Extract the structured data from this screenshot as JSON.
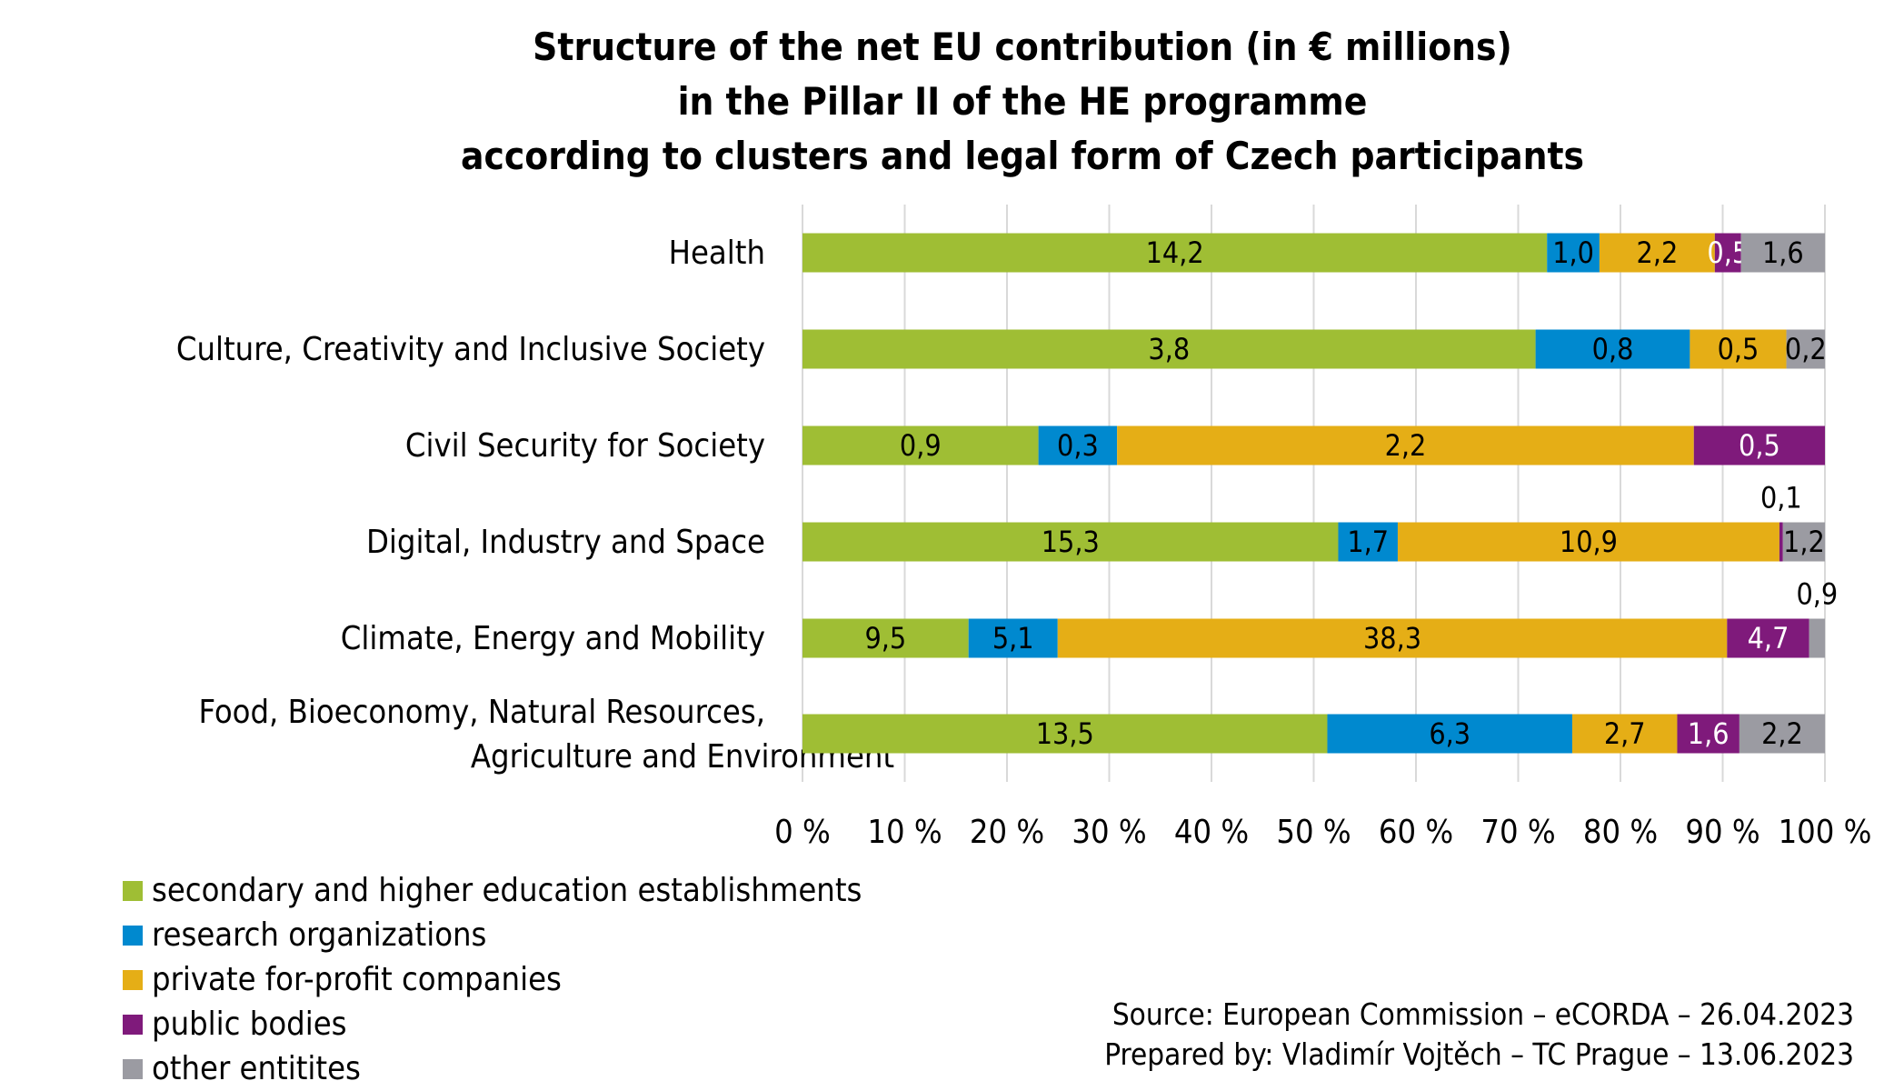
{
  "chart_data": {
    "type": "bar",
    "orientation": "horizontal",
    "stacked": "percent",
    "title": [
      "Structure of the net EU contribution (in € millions)",
      "in the Pillar II of the HE programme",
      "according to clusters and legal form of Czech participants"
    ],
    "categories": [
      "Health",
      "Culture, Creativity and Inclusive Society",
      "Civil Security for Society",
      "Digital, Industry and Space",
      "Climate, Energy and Mobility",
      "Food, Bioeconomy, Natural Resources, Agriculture and Environment"
    ],
    "category_lines": [
      [
        "Health"
      ],
      [
        "Culture, Creativity and Inclusive Society"
      ],
      [
        "Civil Security for Society"
      ],
      [
        "Digital, Industry and Space"
      ],
      [
        "Climate, Energy and Mobility"
      ],
      [
        "Food, Bioeconomy, Natural Resources,",
        "Agriculture and Environment"
      ]
    ],
    "series": [
      {
        "name": "secondary and higher education establishments",
        "color": "#9fbe34",
        "label_color": "#000000",
        "values": [
          14.2,
          3.8,
          0.9,
          15.3,
          9.5,
          13.5
        ],
        "labels": [
          "14,2",
          "3,8",
          "0,9",
          "15,3",
          "9,5",
          "13,5"
        ]
      },
      {
        "name": "research organizations",
        "color": "#0089cf",
        "label_color": "#000000",
        "values": [
          1.0,
          0.8,
          0.3,
          1.7,
          5.1,
          6.3
        ],
        "labels": [
          "1,0",
          "0,8",
          "0,3",
          "1,7",
          "5,1",
          "6,3"
        ]
      },
      {
        "name": "private for-profit companies",
        "color": "#e5ae16",
        "label_color": "#000000",
        "values": [
          2.2,
          0.5,
          2.2,
          10.9,
          38.3,
          2.7
        ],
        "labels": [
          "2,2",
          "0,5",
          "2,2",
          "10,9",
          "38,3",
          "2,7"
        ]
      },
      {
        "name": "public bodies",
        "color": "#7f1a7b",
        "label_color": "#ffffff",
        "values": [
          0.5,
          0,
          0.5,
          0.1,
          4.7,
          1.6
        ],
        "labels": [
          "0,5",
          "",
          "0,5",
          "0,1",
          "4,7",
          "1,6"
        ]
      },
      {
        "name": "other entitites",
        "color": "#9b9ba2",
        "label_color": "#000000",
        "values": [
          1.6,
          0.2,
          0,
          1.2,
          0.9,
          2.2
        ],
        "labels": [
          "1,6",
          "0,2",
          "",
          "1,2",
          "0,9",
          "2,2"
        ]
      }
    ],
    "xlim": [
      0,
      100
    ],
    "xticks": [
      "0 %",
      "10 %",
      "20 %",
      "30 %",
      "40 %",
      "50 %",
      "60 %",
      "70 %",
      "80 %",
      "90 %",
      "100 %"
    ],
    "grid": true,
    "legend_position": "bottom-left"
  },
  "source": [
    "Source: European Commission – eCORDA – 26.04.2023",
    "Prepared by: Vladimír Vojtěch – TC Prague – 13.06.2023"
  ]
}
